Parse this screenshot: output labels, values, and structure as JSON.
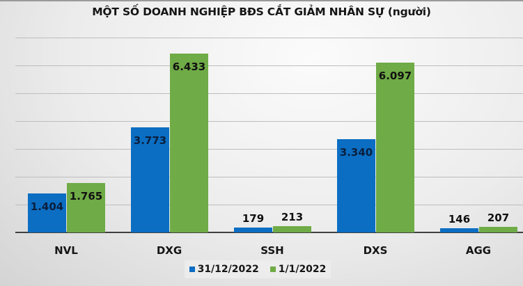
{
  "chart_data": {
    "type": "bar",
    "title": "MỘT SỐ DOANH NGHIỆP BĐS CẮT GIẢM NHÂN SỰ (người)",
    "categories": [
      "NVL",
      "DXG",
      "SSH",
      "DXS",
      "AGG"
    ],
    "series": [
      {
        "name": "31/12/2022",
        "color": "#0b6ec3",
        "values": [
          1404,
          3773,
          179,
          3340,
          146
        ],
        "labels": [
          "1.404",
          "3.773",
          "179",
          "3.340",
          "146"
        ]
      },
      {
        "name": "1/1/2022",
        "color": "#6fab46",
        "values": [
          1765,
          6433,
          213,
          6097,
          207
        ],
        "labels": [
          "1.765",
          "6.433",
          "213",
          "6.097",
          "207"
        ]
      }
    ],
    "xlabel": "",
    "ylabel": "",
    "ylim": [
      0,
      7000
    ],
    "grid": true,
    "y_axis_visible": false,
    "legend_position": "bottom"
  }
}
